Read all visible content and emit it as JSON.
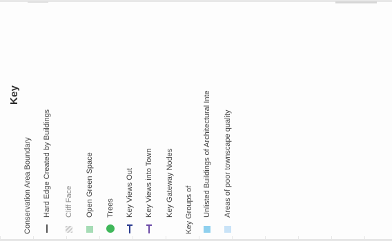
{
  "legend": {
    "title": "Key",
    "items": [
      {
        "label": "Conservation Area Boundary",
        "symbol": "none",
        "symbol_color": ""
      },
      {
        "label": "Hard Edge Created by Buildings",
        "symbol": "line",
        "symbol_color": "#555555"
      },
      {
        "label": "Cliff Face",
        "symbol": "hatch",
        "symbol_color": "#c9c9c9"
      },
      {
        "label": "Open Green Space",
        "symbol": "square",
        "symbol_color": "#a6dcb6"
      },
      {
        "label": "Trees",
        "symbol": "circle",
        "symbol_color": "#3fb75a"
      },
      {
        "label": "Key Views Out",
        "symbol": "arrow",
        "symbol_color": "#2a3b8f"
      },
      {
        "label": "Key Views into Town",
        "symbol": "arrow",
        "symbol_color": "#6c4aa6"
      },
      {
        "label": "Key Gateway Nodes",
        "symbol": "none",
        "symbol_color": ""
      },
      {
        "label": "Key Groups of",
        "symbol": "none",
        "symbol_color": ""
      },
      {
        "label": "Unlisted Buildings of Architectural Inte",
        "symbol": "square",
        "symbol_color": "#8fd0ee"
      },
      {
        "label": "Areas of poor townscape quality",
        "symbol": "square",
        "symbol_color": "#c9e3f7"
      }
    ]
  }
}
